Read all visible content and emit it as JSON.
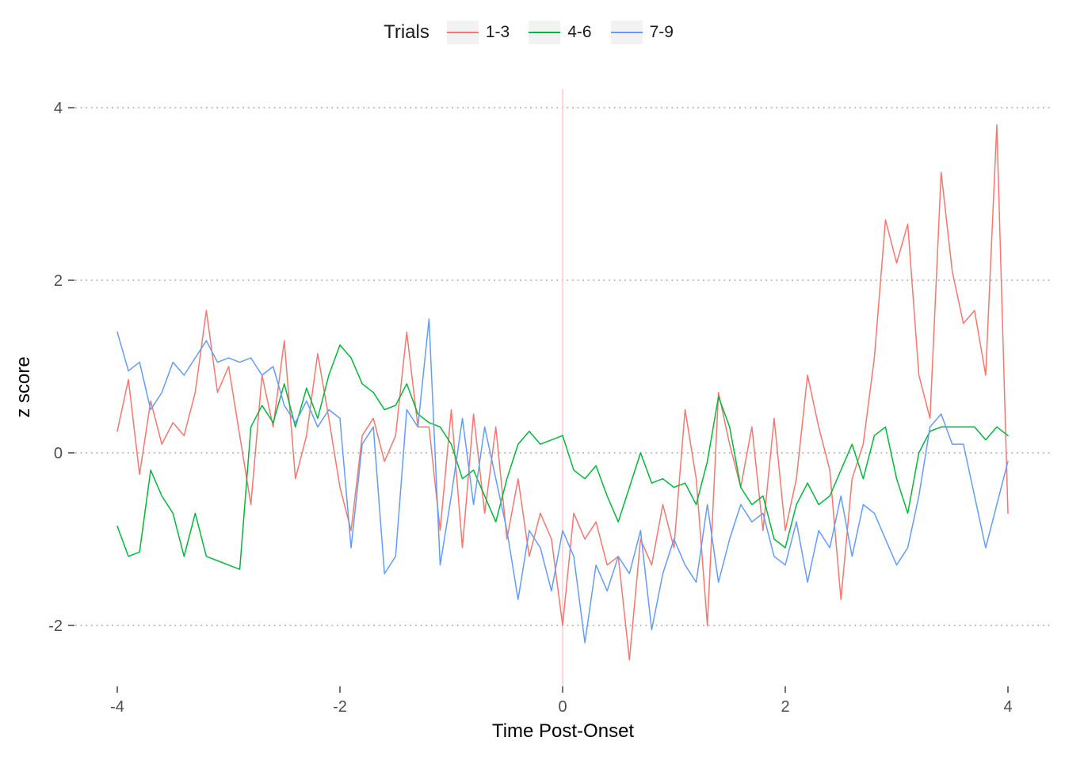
{
  "legend": {
    "title": "Trials",
    "key_fill": "#f2f2f2"
  },
  "axes": {
    "x_label": "Time Post-Onset",
    "y_label": "z score"
  },
  "chart_data": {
    "type": "line",
    "title": "",
    "xlabel": "Time Post-Onset",
    "ylabel": "z score",
    "xlim": [
      -4.35,
      4.4
    ],
    "ylim": [
      -2.6,
      4.15
    ],
    "x_ticks": [
      -4,
      -2,
      0,
      2,
      4
    ],
    "y_ticks": [
      -2,
      0,
      2,
      4
    ],
    "grid": "horizontal-dotted",
    "grid_color": "#b3b3b3",
    "legend_position": "top",
    "legend_title": "Trials",
    "reference_line": {
      "x": 0,
      "color": "#ffc2cb"
    },
    "x_start": -4,
    "x_step": 0.1,
    "series": [
      {
        "name": "1-3",
        "color": "#F8766D",
        "values": [
          0.25,
          0.85,
          -0.25,
          0.6,
          0.1,
          0.35,
          0.2,
          0.7,
          1.65,
          0.7,
          1.0,
          0.2,
          -0.6,
          0.9,
          0.3,
          1.3,
          -0.3,
          0.2,
          1.15,
          0.4,
          -0.4,
          -0.9,
          0.2,
          0.4,
          -0.1,
          0.2,
          1.4,
          0.3,
          0.3,
          -0.9,
          0.5,
          -1.1,
          0.45,
          -0.7,
          0.3,
          -1.0,
          -0.3,
          -1.2,
          -0.7,
          -1.0,
          -2.0,
          -0.7,
          -1.0,
          -0.8,
          -1.3,
          -1.2,
          -2.4,
          -1.0,
          -1.3,
          -0.6,
          -1.1,
          0.5,
          -0.3,
          -2.0,
          0.7,
          0.1,
          -0.4,
          0.3,
          -0.9,
          0.4,
          -0.9,
          -0.3,
          0.9,
          0.3,
          -0.2,
          -1.7,
          -0.3,
          0.1,
          1.1,
          2.7,
          2.2,
          2.65,
          0.9,
          0.4,
          3.25,
          2.1,
          1.5,
          1.65,
          0.9,
          3.8,
          -0.7
        ]
      },
      {
        "name": "4-6",
        "color": "#00BA38",
        "values": [
          -0.85,
          -1.2,
          -1.15,
          -0.2,
          -0.5,
          -0.7,
          -1.2,
          -0.7,
          -1.2,
          -1.25,
          -1.3,
          -1.35,
          0.3,
          0.55,
          0.35,
          0.8,
          0.3,
          0.75,
          0.4,
          0.9,
          1.25,
          1.1,
          0.8,
          0.7,
          0.5,
          0.55,
          0.8,
          0.45,
          0.35,
          0.3,
          0.1,
          -0.3,
          -0.2,
          -0.5,
          -0.8,
          -0.3,
          0.1,
          0.25,
          0.1,
          0.15,
          0.2,
          -0.2,
          -0.3,
          -0.15,
          -0.5,
          -0.8,
          -0.4,
          0.0,
          -0.35,
          -0.3,
          -0.4,
          -0.35,
          -0.6,
          -0.1,
          0.65,
          0.3,
          -0.4,
          -0.6,
          -0.5,
          -1.0,
          -1.1,
          -0.6,
          -0.35,
          -0.6,
          -0.5,
          -0.2,
          0.1,
          -0.3,
          0.2,
          0.3,
          -0.3,
          -0.7,
          0.0,
          0.25,
          0.3,
          0.3,
          0.3,
          0.3,
          0.15,
          0.3,
          0.2
        ]
      },
      {
        "name": "7-9",
        "color": "#619CFF",
        "values": [
          1.4,
          0.95,
          1.05,
          0.5,
          0.7,
          1.05,
          0.9,
          1.1,
          1.3,
          1.05,
          1.1,
          1.05,
          1.1,
          0.9,
          1.0,
          0.55,
          0.35,
          0.6,
          0.3,
          0.5,
          0.4,
          -1.1,
          0.1,
          0.3,
          -1.4,
          -1.2,
          0.5,
          0.3,
          1.55,
          -1.3,
          -0.5,
          0.4,
          -0.6,
          0.3,
          -0.3,
          -0.9,
          -1.7,
          -0.9,
          -1.1,
          -1.6,
          -0.9,
          -1.2,
          -2.2,
          -1.3,
          -1.6,
          -1.2,
          -1.4,
          -0.9,
          -2.05,
          -1.4,
          -1.0,
          -1.3,
          -1.5,
          -0.6,
          -1.5,
          -1.0,
          -0.6,
          -0.8,
          -0.7,
          -1.2,
          -1.3,
          -0.8,
          -1.5,
          -0.9,
          -1.1,
          -0.5,
          -1.2,
          -0.6,
          -0.7,
          -1.0,
          -1.3,
          -1.1,
          -0.5,
          0.3,
          0.45,
          0.1,
          0.1,
          -0.5,
          -1.1,
          -0.6,
          -0.1
        ]
      }
    ]
  }
}
